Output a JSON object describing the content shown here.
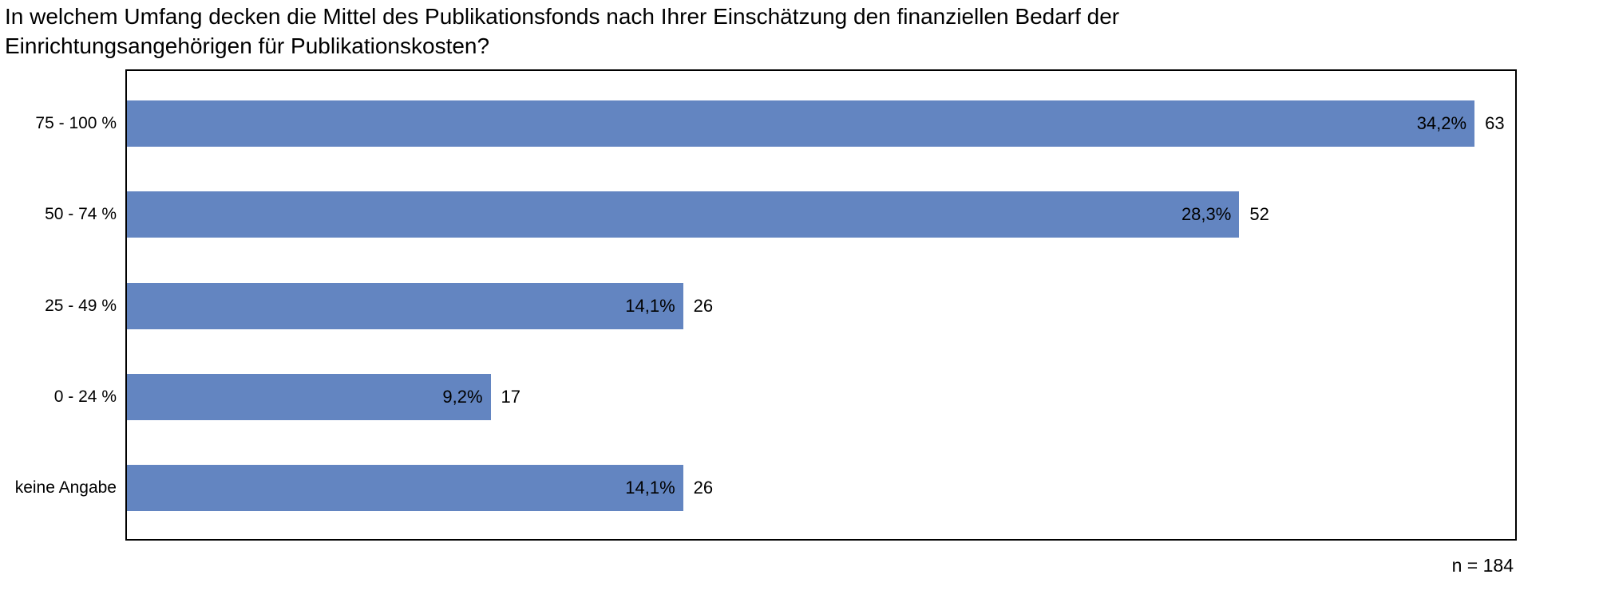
{
  "title": {
    "line1": "In welchem Umfang decken die Mittel des Publikationsfonds nach Ihrer Einschätzung den finanziellen Bedarf der",
    "line2": "Einrichtungsangehörigen für Publikationskosten?"
  },
  "footer": {
    "n_label": "n = 184"
  },
  "colors": {
    "bar": "#6385C1",
    "plot_border": "#000000",
    "background": "#FFFFFF",
    "text": "#000000"
  },
  "chart_data": {
    "type": "bar",
    "orientation": "horizontal",
    "categories": [
      "75 - 100 %",
      "50 - 74 %",
      "25 - 49 %",
      "0 - 24 %",
      "keine Angabe"
    ],
    "values": [
      63,
      52,
      26,
      17,
      26
    ],
    "percent_labels": [
      "34,2%",
      "28,3%",
      "14,1%",
      "9,2%",
      "14,1%"
    ],
    "title": "In welchem Umfang decken die Mittel des Publikationsfonds nach Ihrer Einschätzung den finanziellen Bedarf der Einrichtungsangehörigen für Publikationskosten?",
    "n_total": 184,
    "xlim": [
      0,
      64.9
    ],
    "xlabel": "",
    "ylabel": "",
    "grid": false,
    "legend": false
  }
}
